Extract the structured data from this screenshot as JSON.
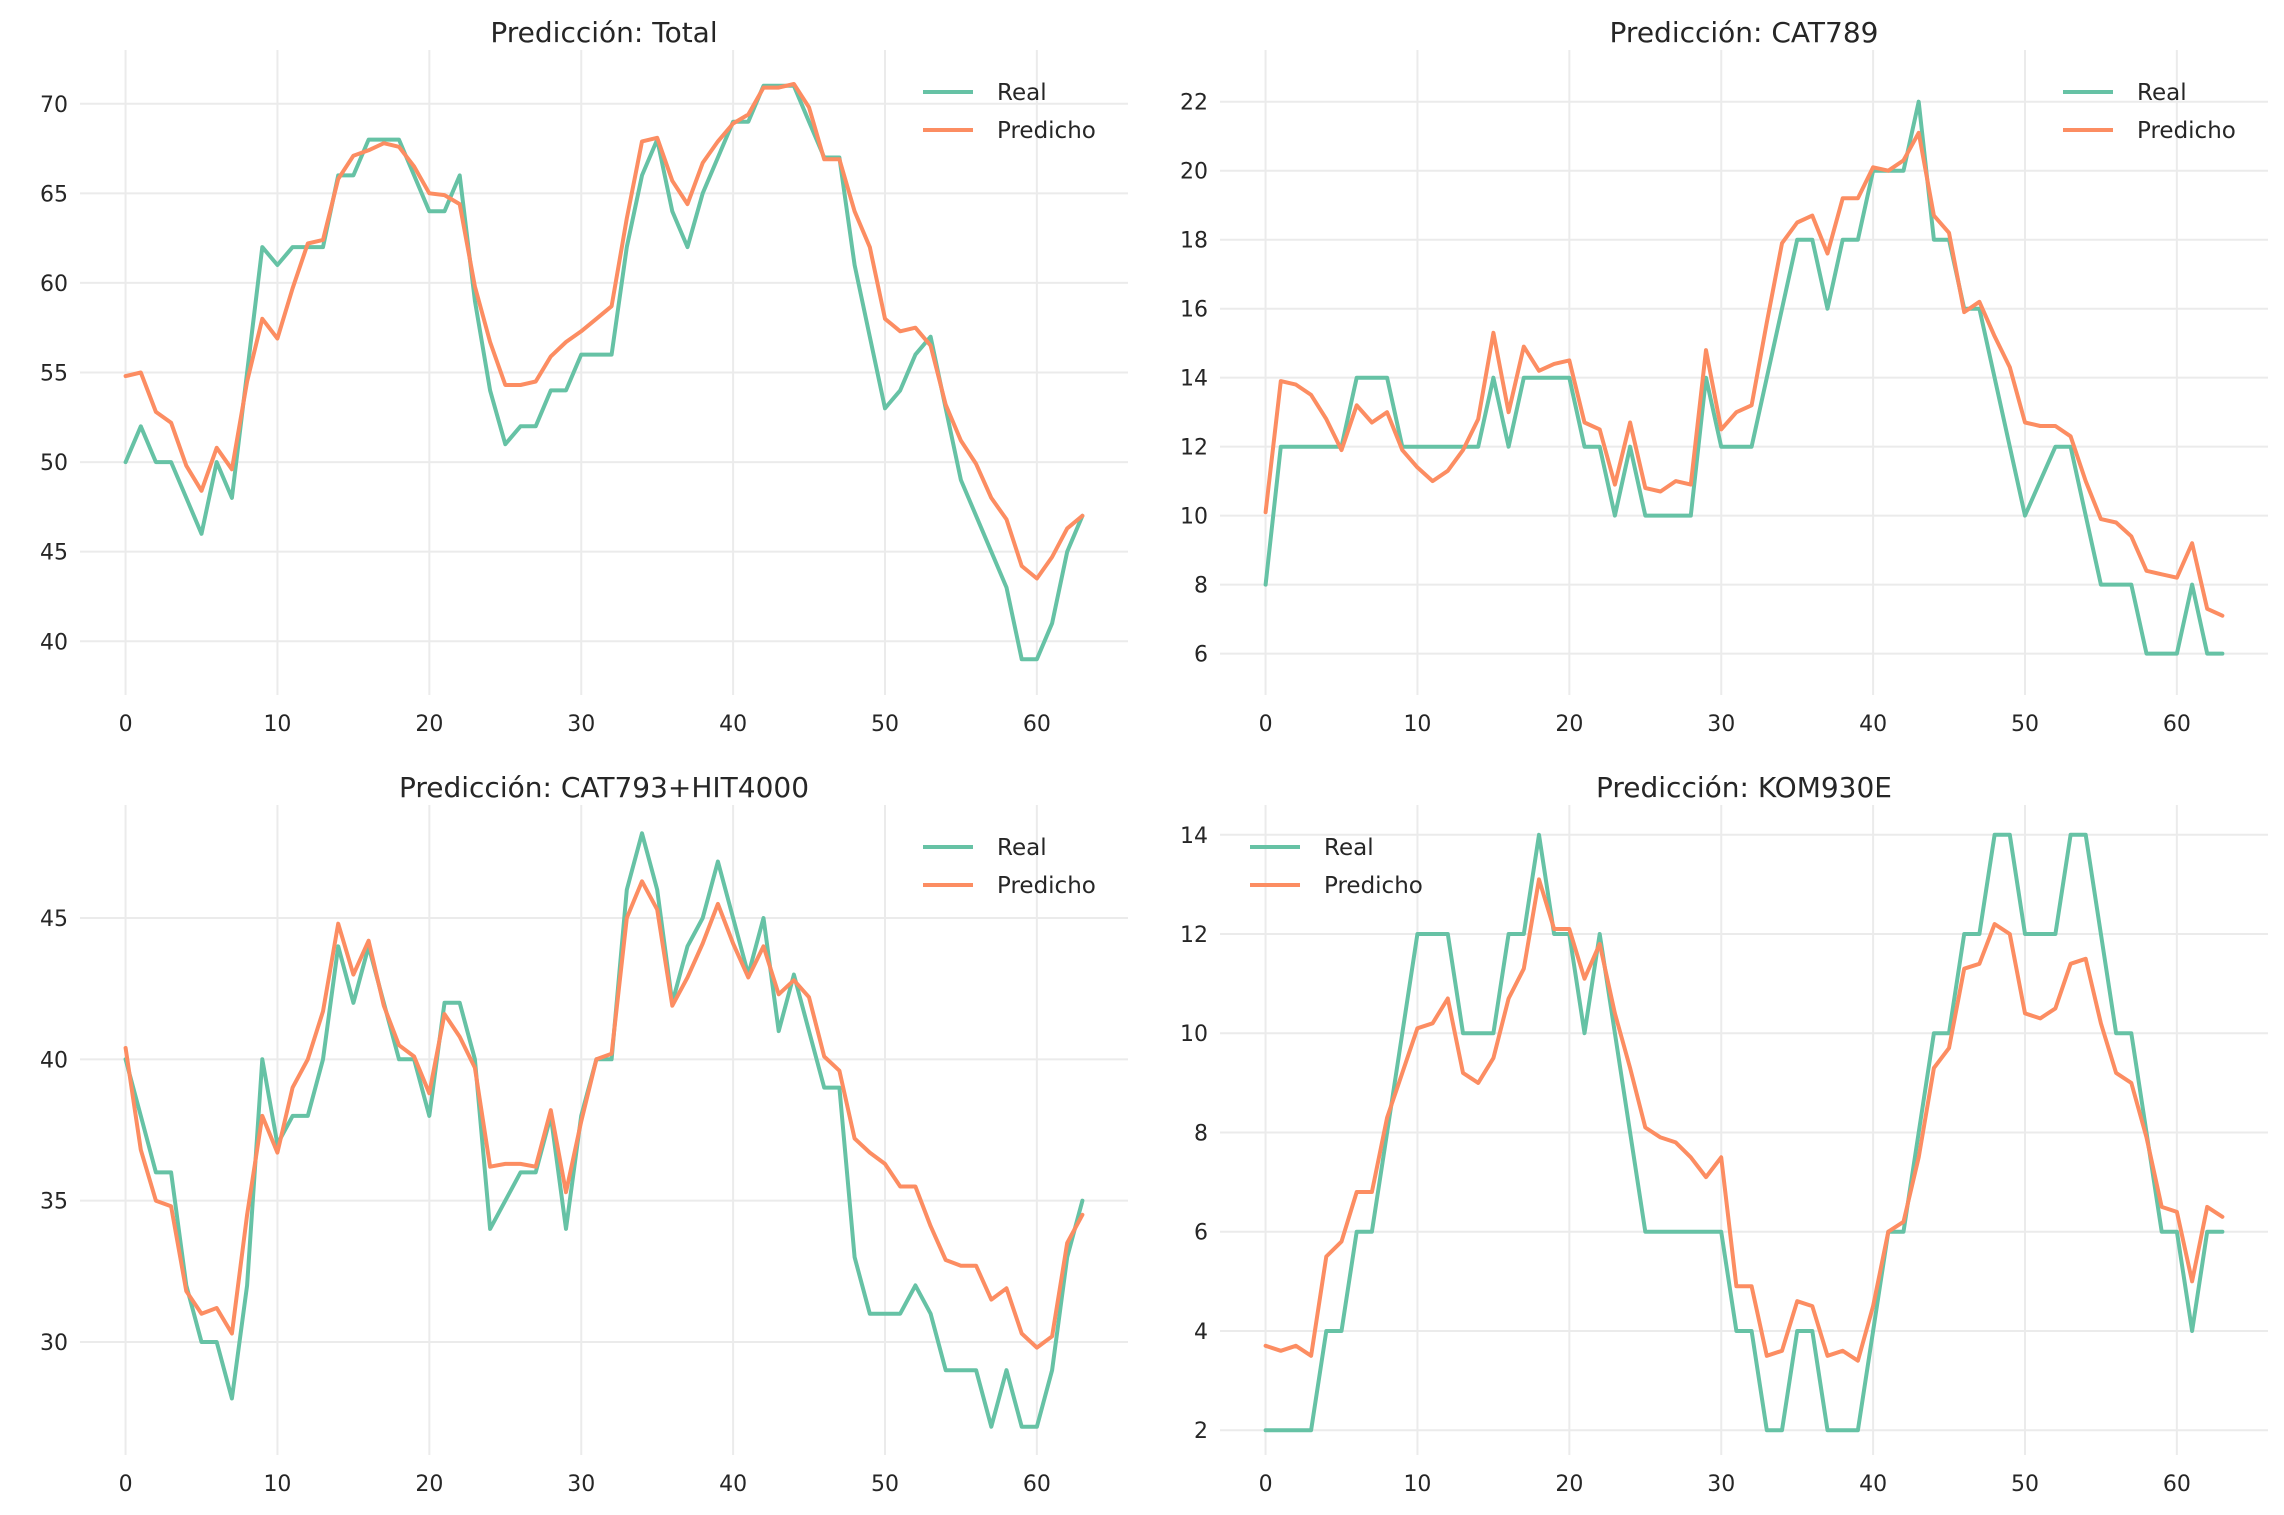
{
  "colors": {
    "real": "#66c2a5",
    "predicho": "#fc8d62",
    "grid": "#ebebeb",
    "text": "#262626"
  },
  "chart_data": [
    {
      "type": "line",
      "title": "Predicción: Total",
      "xlim": [
        -3,
        66
      ],
      "ylim": [
        37,
        73
      ],
      "xticks": [
        0,
        10,
        20,
        30,
        40,
        50,
        60
      ],
      "yticks": [
        40,
        45,
        50,
        55,
        60,
        65,
        70
      ],
      "legend": "top-right",
      "series": [
        {
          "name": "Real",
          "values": [
            50,
            52,
            50,
            50,
            48,
            46,
            50,
            48,
            55,
            62,
            61,
            62,
            62,
            62,
            66,
            66,
            68,
            68,
            68,
            66,
            64,
            64,
            66,
            59,
            54,
            51,
            52,
            52,
            54,
            54,
            56,
            56,
            56,
            62,
            66,
            68,
            64,
            62,
            65,
            67,
            69,
            69,
            71,
            71,
            71,
            69,
            67,
            67,
            61,
            57,
            53,
            54,
            56,
            57,
            53,
            49,
            47,
            45,
            43,
            39,
            39,
            41,
            45,
            47
          ]
        },
        {
          "name": "Predicho",
          "values": [
            54.8,
            55,
            52.8,
            52.2,
            49.8,
            48.4,
            50.8,
            49.6,
            54.5,
            58,
            56.9,
            59.7,
            62.2,
            62.4,
            65.8,
            67.1,
            67.4,
            67.8,
            67.6,
            66.5,
            65,
            64.9,
            64.4,
            59.8,
            56.7,
            54.3,
            54.3,
            54.5,
            55.9,
            56.7,
            57.3,
            58,
            58.7,
            63.6,
            67.9,
            68.1,
            65.7,
            64.4,
            66.7,
            67.9,
            68.9,
            69.4,
            70.9,
            70.9,
            71.1,
            69.8,
            66.9,
            66.9,
            64,
            62,
            58,
            57.3,
            57.5,
            56.5,
            53.2,
            51.2,
            49.9,
            48,
            46.8,
            44.2,
            43.5,
            44.7,
            46.3,
            47
          ]
        }
      ]
    },
    {
      "type": "line",
      "title": "Predicción: CAT789",
      "xlim": [
        -3,
        66
      ],
      "ylim": [
        4.8,
        23.5
      ],
      "xticks": [
        0,
        10,
        20,
        30,
        40,
        50,
        60
      ],
      "yticks": [
        6,
        8,
        10,
        12,
        14,
        16,
        18,
        20,
        22
      ],
      "legend": "top-right",
      "series": [
        {
          "name": "Real",
          "values": [
            8,
            12,
            12,
            12,
            12,
            12,
            14,
            14,
            14,
            12,
            12,
            12,
            12,
            12,
            12,
            14,
            12,
            14,
            14,
            14,
            14,
            12,
            12,
            10,
            12,
            10,
            10,
            10,
            10,
            14,
            12,
            12,
            12,
            14,
            16,
            18,
            18,
            16,
            18,
            18,
            20,
            20,
            20,
            22,
            18,
            18,
            16,
            16,
            14,
            12,
            10,
            11,
            12,
            12,
            10,
            8,
            8,
            8,
            6,
            6,
            6,
            8,
            6,
            6
          ]
        },
        {
          "name": "Predicho",
          "values": [
            10.1,
            13.9,
            13.8,
            13.5,
            12.8,
            11.9,
            13.2,
            12.7,
            13,
            11.9,
            11.4,
            11,
            11.3,
            11.9,
            12.8,
            15.3,
            13,
            14.9,
            14.2,
            14.4,
            14.5,
            12.7,
            12.5,
            10.9,
            12.7,
            10.8,
            10.7,
            11,
            10.9,
            14.8,
            12.5,
            13,
            13.2,
            15.6,
            17.9,
            18.5,
            18.7,
            17.6,
            19.2,
            19.2,
            20.1,
            20,
            20.3,
            21.1,
            18.7,
            18.2,
            15.9,
            16.2,
            15.2,
            14.3,
            12.7,
            12.6,
            12.6,
            12.3,
            11,
            9.9,
            9.8,
            9.4,
            8.4,
            8.3,
            8.2,
            9.2,
            7.3,
            7.1
          ]
        }
      ]
    },
    {
      "type": "line",
      "title": "Predicción: CAT793+HIT4000",
      "xlim": [
        -3,
        66
      ],
      "ylim": [
        26,
        49
      ],
      "xticks": [
        0,
        10,
        20,
        30,
        40,
        50,
        60
      ],
      "yticks": [
        30,
        35,
        40,
        45
      ],
      "legend": "top-right",
      "series": [
        {
          "name": "Real",
          "values": [
            40,
            38,
            36,
            36,
            32,
            30,
            30,
            28,
            32,
            40,
            37,
            38,
            38,
            40,
            44,
            42,
            44,
            42,
            40,
            40,
            38,
            42,
            42,
            40,
            34,
            35,
            36,
            36,
            38,
            34,
            38,
            40,
            40,
            46,
            48,
            46,
            42,
            44,
            45,
            47,
            45,
            43,
            45,
            41,
            43,
            41,
            39,
            39,
            33,
            31,
            31,
            31,
            32,
            31,
            29,
            29,
            29,
            27,
            29,
            27,
            27,
            29,
            33,
            35
          ]
        },
        {
          "name": "Predicho",
          "values": [
            40.4,
            36.8,
            35,
            34.8,
            31.8,
            31,
            31.2,
            30.3,
            34.5,
            38,
            36.7,
            39,
            40,
            41.7,
            44.8,
            43,
            44.2,
            41.9,
            40.5,
            40.1,
            38.8,
            41.6,
            40.8,
            39.7,
            36.2,
            36.3,
            36.3,
            36.2,
            38.2,
            35.3,
            37.8,
            40,
            40.2,
            45,
            46.3,
            45.3,
            41.9,
            42.9,
            44.1,
            45.5,
            44.1,
            42.9,
            44,
            42.3,
            42.8,
            42.2,
            40.1,
            39.6,
            37.2,
            36.7,
            36.3,
            35.5,
            35.5,
            34.1,
            32.9,
            32.7,
            32.7,
            31.5,
            31.9,
            30.3,
            29.8,
            30.2,
            33.5,
            34.5
          ]
        }
      ]
    },
    {
      "type": "line",
      "title": "Predicción: KOM930E",
      "xlim": [
        -3,
        66
      ],
      "ylim": [
        1.5,
        14.6
      ],
      "xticks": [
        0,
        10,
        20,
        30,
        40,
        50,
        60
      ],
      "yticks": [
        2,
        4,
        6,
        8,
        10,
        12,
        14
      ],
      "legend": "top-left",
      "series": [
        {
          "name": "Real",
          "values": [
            2,
            2,
            2,
            2,
            4,
            4,
            6,
            6,
            8,
            10,
            12,
            12,
            12,
            10,
            10,
            10,
            12,
            12,
            14,
            12,
            12,
            10,
            12,
            10,
            8,
            6,
            6,
            6,
            6,
            6,
            6,
            4,
            4,
            2,
            2,
            4,
            4,
            2,
            2,
            2,
            4,
            6,
            6,
            8,
            10,
            10,
            12,
            12,
            14,
            14,
            12,
            12,
            12,
            14,
            14,
            12,
            10,
            10,
            8,
            6,
            6,
            4,
            6,
            6
          ]
        },
        {
          "name": "Predicho",
          "values": [
            3.7,
            3.6,
            3.7,
            3.5,
            5.5,
            5.8,
            6.8,
            6.8,
            8.3,
            9.2,
            10.1,
            10.2,
            10.7,
            9.2,
            9,
            9.5,
            10.7,
            11.3,
            13.1,
            12.1,
            12.1,
            11.1,
            11.8,
            10.4,
            9.3,
            8.1,
            7.9,
            7.8,
            7.5,
            7.1,
            7.5,
            4.9,
            4.9,
            3.5,
            3.6,
            4.6,
            4.5,
            3.5,
            3.6,
            3.4,
            4.5,
            6,
            6.2,
            7.5,
            9.3,
            9.7,
            11.3,
            11.4,
            12.2,
            12,
            10.4,
            10.3,
            10.5,
            11.4,
            11.5,
            10.2,
            9.2,
            9,
            7.9,
            6.5,
            6.4,
            5,
            6.5,
            6.3
          ]
        }
      ]
    }
  ]
}
